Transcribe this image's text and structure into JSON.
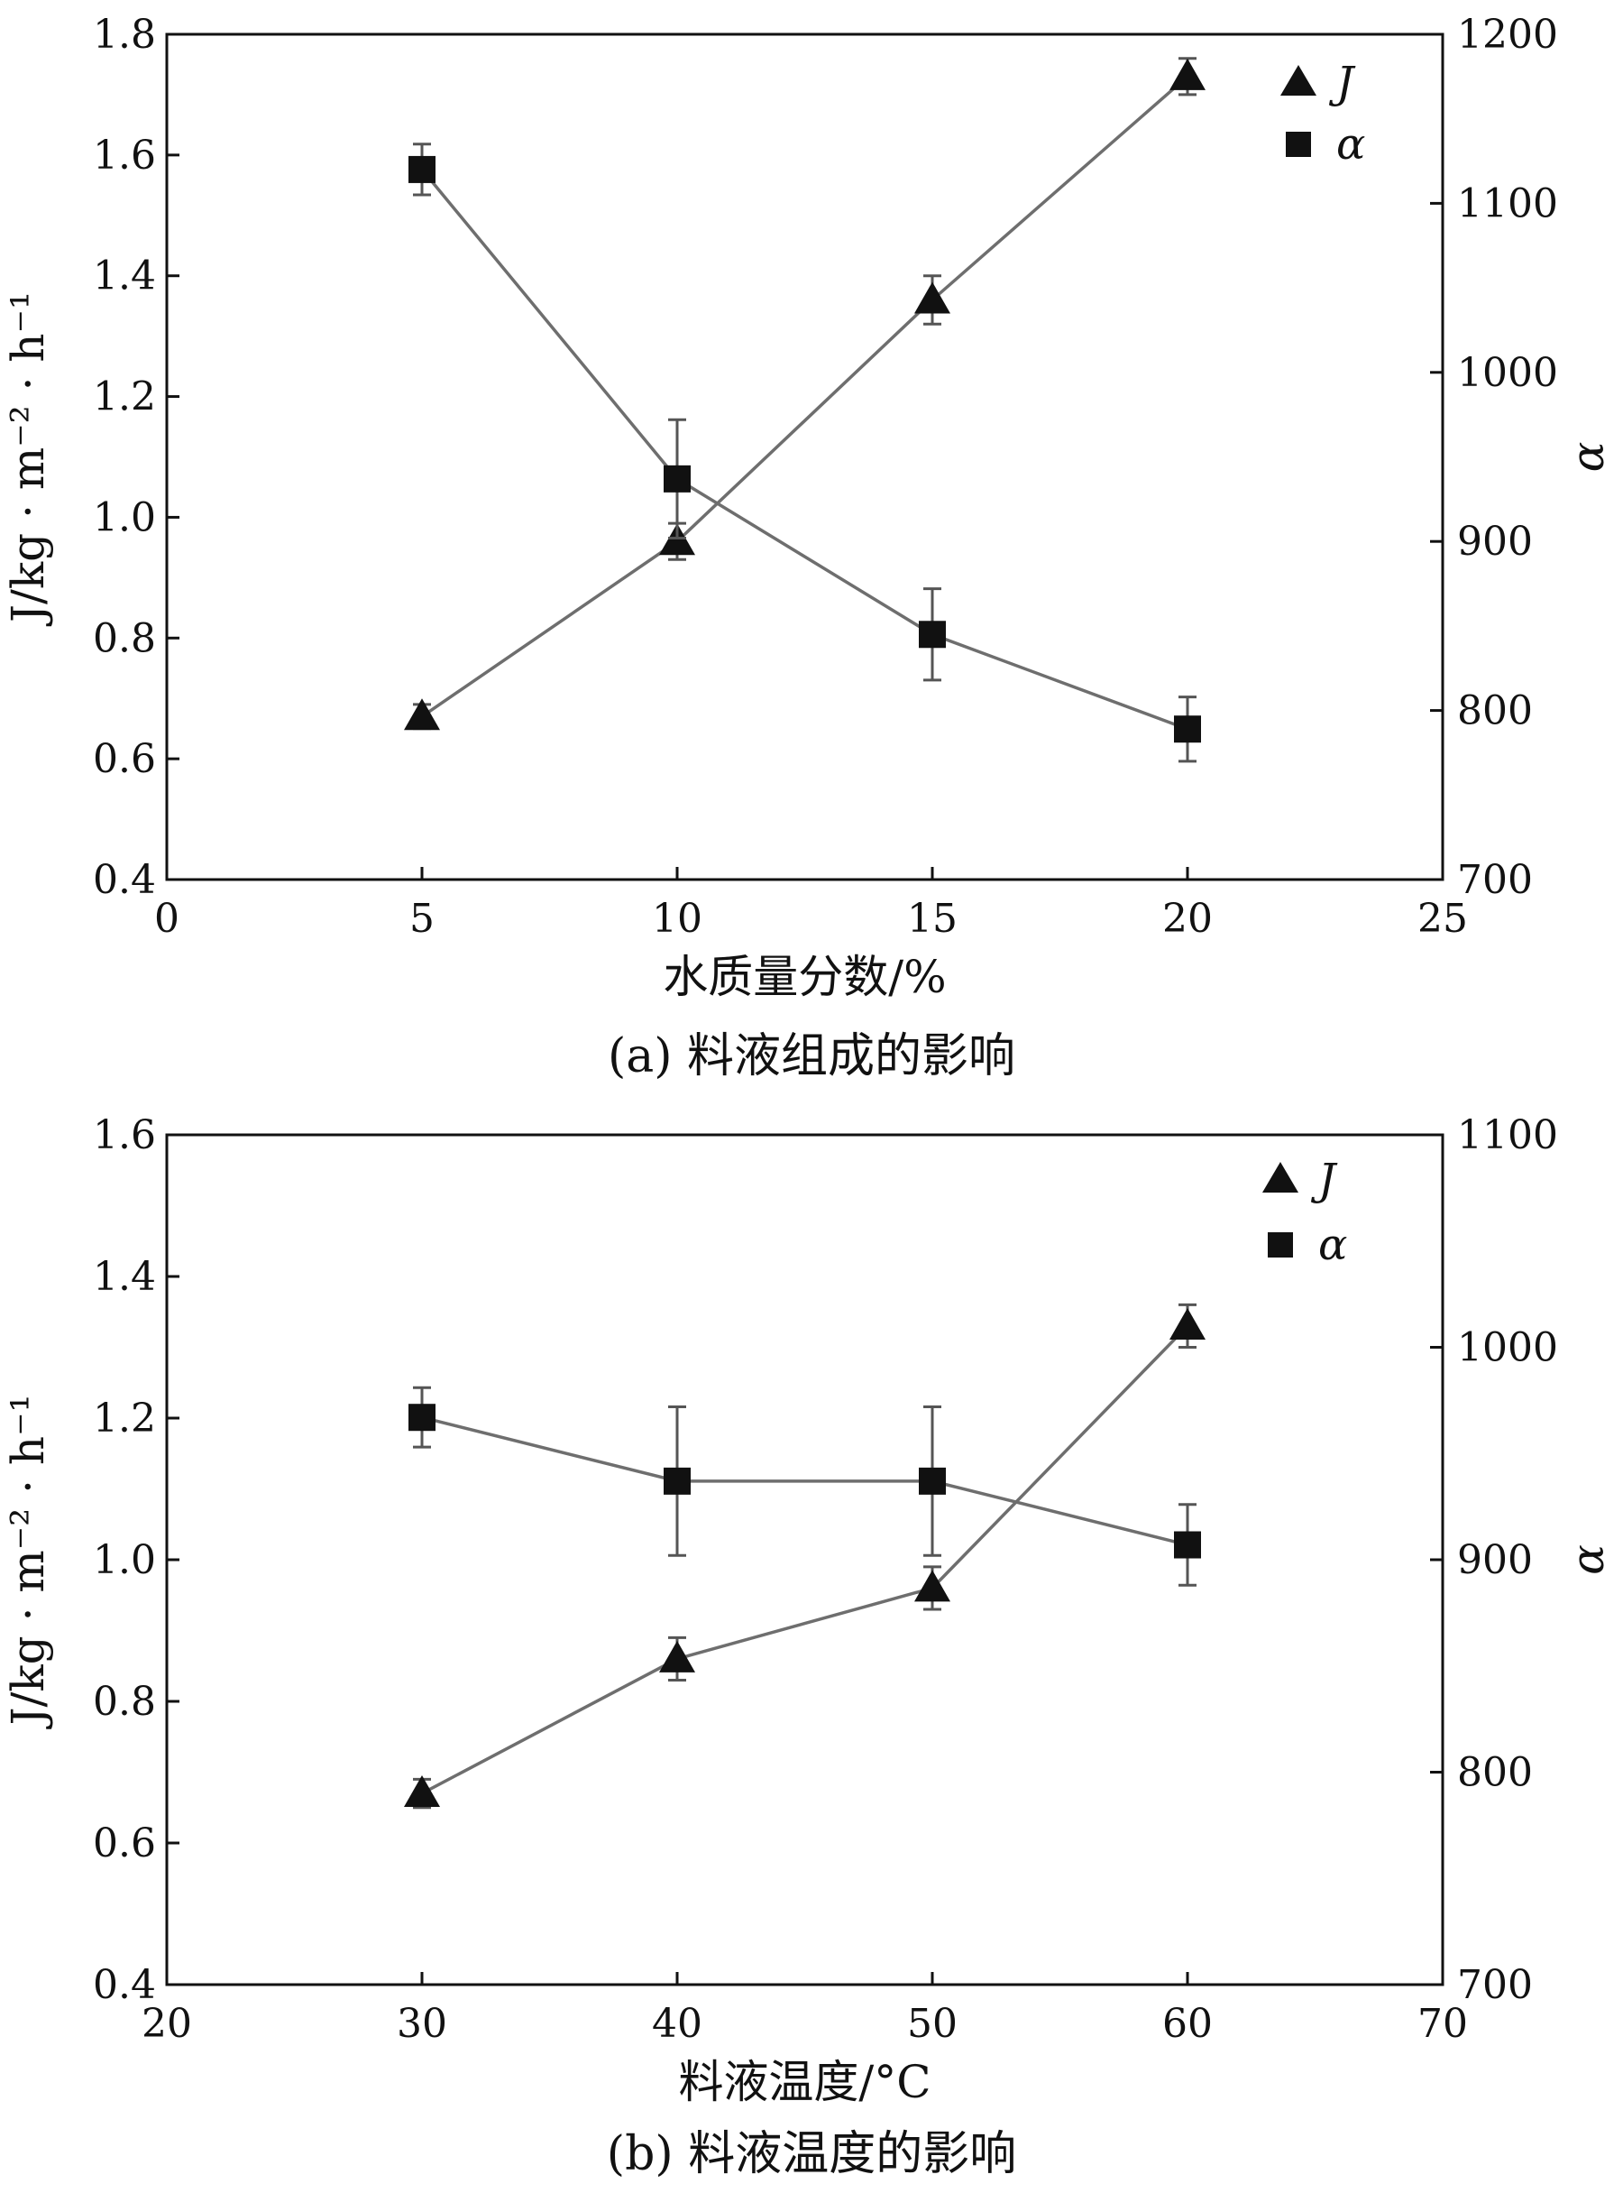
{
  "chart_data": [
    {
      "id": "a",
      "type": "line",
      "caption": "(a) 料液组成的影响",
      "xlabel": "水质量分数/%",
      "ylabel": "J/kg · m⁻² · h⁻¹",
      "y2label": "α",
      "xlim": [
        0,
        25
      ],
      "xticks": [
        0,
        5,
        10,
        15,
        20,
        25
      ],
      "ylim": [
        0.4,
        1.8
      ],
      "yticks": [
        0.4,
        0.6,
        0.8,
        1.0,
        1.2,
        1.4,
        1.6,
        1.8
      ],
      "y2lim": [
        700,
        1200
      ],
      "y2ticks": [
        700,
        800,
        900,
        1000,
        1100,
        1200
      ],
      "legend_position": "top-right",
      "series": [
        {
          "name": "J",
          "marker": "triangle",
          "axis": "left",
          "x": [
            5,
            10,
            15,
            20
          ],
          "y": [
            0.67,
            0.96,
            1.36,
            1.73
          ],
          "err": [
            0.02,
            0.03,
            0.04,
            0.03
          ]
        },
        {
          "name": "α",
          "marker": "square",
          "axis": "right",
          "x": [
            5,
            10,
            15,
            20
          ],
          "y": [
            1120,
            937,
            845,
            789
          ],
          "err": [
            15,
            35,
            27,
            19
          ]
        }
      ]
    },
    {
      "id": "b",
      "type": "line",
      "caption": "(b) 料液温度的影响",
      "xlabel": "料液温度/°C",
      "ylabel": "J/kg · m⁻² · h⁻¹",
      "y2label": "α",
      "xlim": [
        20,
        70
      ],
      "xticks": [
        20,
        30,
        40,
        50,
        60,
        70
      ],
      "ylim": [
        0.4,
        1.6
      ],
      "yticks": [
        0.4,
        0.6,
        0.8,
        1.0,
        1.2,
        1.4,
        1.6
      ],
      "y2lim": [
        700,
        1100
      ],
      "y2ticks": [
        700,
        800,
        900,
        1000,
        1100
      ],
      "legend_position": "top-right",
      "series": [
        {
          "name": "J",
          "marker": "triangle",
          "axis": "left",
          "x": [
            30,
            40,
            50,
            60
          ],
          "y": [
            0.67,
            0.86,
            0.96,
            1.33
          ],
          "err": [
            0.02,
            0.03,
            0.03,
            0.03
          ]
        },
        {
          "name": "α",
          "marker": "square",
          "axis": "right",
          "x": [
            30,
            40,
            50,
            60
          ],
          "y": [
            967,
            937,
            937,
            907
          ],
          "err": [
            14,
            35,
            35,
            19
          ]
        }
      ]
    }
  ]
}
